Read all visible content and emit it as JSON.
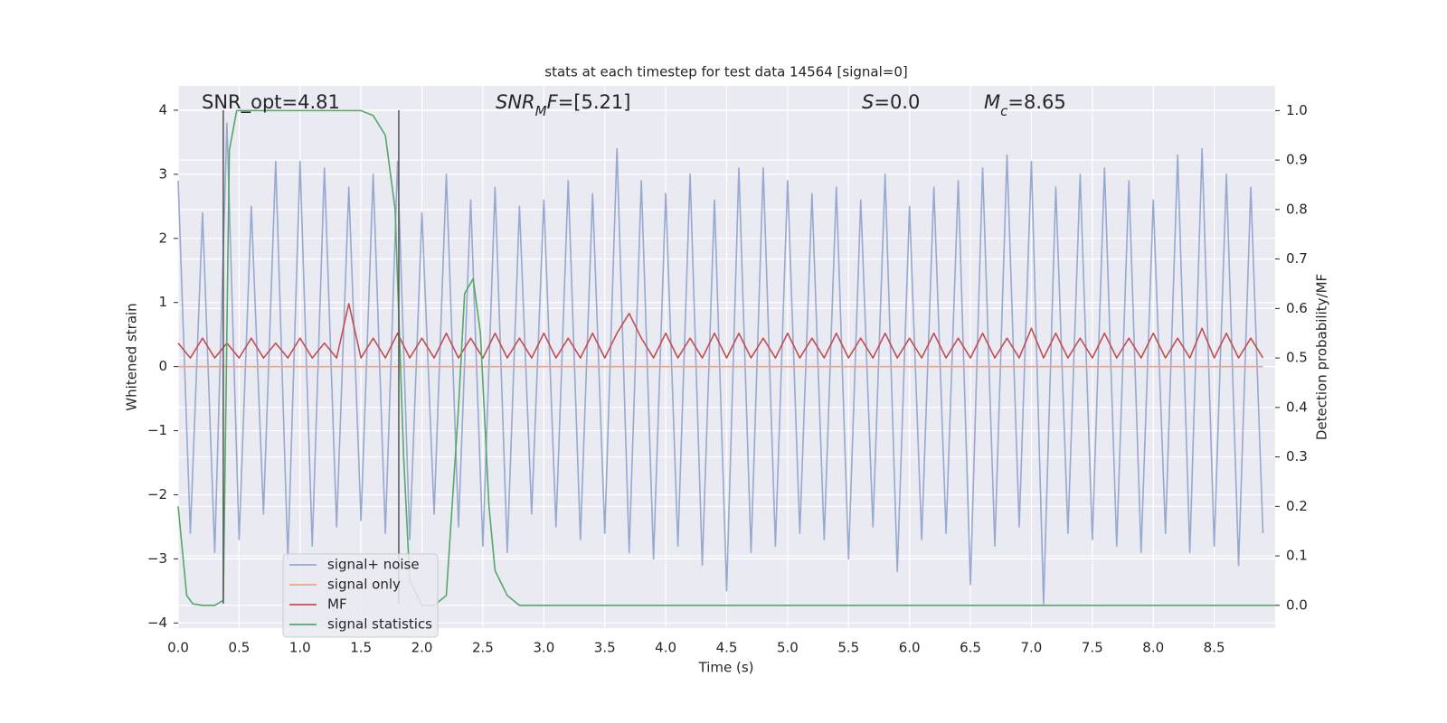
{
  "chart_data": {
    "type": "line",
    "title": "stats at each timestep for test data 14564 [signal=0]",
    "xlabel": "Time (s)",
    "ylabel": "Whitened strain",
    "y2label": "Detection probability/MF",
    "grid": true,
    "legend": "lower left",
    "xlim": [
      0,
      9.0
    ],
    "ylim": [
      -4.08,
      4.38
    ],
    "y2lim": [
      -0.046,
      1.05
    ],
    "xticks": [
      {
        "value": 0,
        "label": "0.0"
      },
      0.5,
      {
        "value": 1,
        "label": "1.0"
      },
      1.5,
      {
        "value": 2,
        "label": "2.0"
      },
      2.5,
      {
        "value": 3,
        "label": "3.0"
      },
      3.5,
      {
        "value": 4,
        "label": "4.0"
      },
      4.5,
      {
        "value": 5,
        "label": "5.0"
      },
      5.5,
      {
        "value": 6,
        "label": "6.0"
      },
      6.5,
      {
        "value": 7,
        "label": "7.0"
      },
      7.5,
      {
        "value": 8,
        "label": "8.0"
      },
      8.5
    ],
    "yticks": [
      {
        "value": -4,
        "label": "−4"
      },
      {
        "value": -3,
        "label": "−3"
      },
      {
        "value": -2,
        "label": "−2"
      },
      {
        "value": -1,
        "label": "−1"
      },
      0,
      1,
      2,
      3,
      4
    ],
    "y2ticks": [
      {
        "value": 0,
        "label": "0.0"
      },
      0.1,
      0.2,
      0.3,
      0.4,
      0.5,
      0.6,
      0.7,
      0.8,
      0.9,
      {
        "value": 1,
        "label": "1.0"
      }
    ],
    "x": [
      0.0,
      0.1,
      0.2,
      0.3,
      0.4,
      0.5,
      0.6,
      0.7,
      0.8,
      0.9,
      1.0,
      1.1,
      1.2,
      1.3,
      1.4,
      1.5,
      1.6,
      1.7,
      1.8,
      1.9,
      2.0,
      2.1,
      2.2,
      2.3,
      2.4,
      2.5,
      2.6,
      2.7,
      2.8,
      2.9,
      3.0,
      3.1,
      3.2,
      3.3,
      3.4,
      3.5,
      3.6,
      3.7,
      3.8,
      3.9,
      4.0,
      4.1,
      4.2,
      4.3,
      4.4,
      4.5,
      4.6,
      4.7,
      4.8,
      4.9,
      5.0,
      5.1,
      5.2,
      5.3,
      5.4,
      5.5,
      5.6,
      5.7,
      5.8,
      5.9,
      6.0,
      6.1,
      6.2,
      6.3,
      6.4,
      6.5,
      6.6,
      6.7,
      6.8,
      6.9,
      7.0,
      7.1,
      7.2,
      7.3,
      7.4,
      7.5,
      7.6,
      7.7,
      7.8,
      7.9,
      8.0,
      8.1,
      8.2,
      8.3,
      8.4,
      8.5,
      8.6,
      8.7,
      8.8,
      8.9
    ],
    "series": [
      {
        "name": "signal+ noise",
        "color": "#97a9cf",
        "values": [
          2.9,
          -2.6,
          2.4,
          -2.9,
          3.8,
          -2.7,
          2.5,
          -2.3,
          3.2,
          -3.0,
          3.2,
          -2.8,
          3.1,
          -2.5,
          2.8,
          -2.4,
          3.0,
          -2.6,
          3.2,
          -2.7,
          2.4,
          -2.3,
          3.0,
          -2.5,
          2.6,
          -2.8,
          2.8,
          -2.9,
          2.5,
          -2.3,
          2.6,
          -2.5,
          2.9,
          -2.7,
          2.7,
          -2.6,
          3.4,
          -2.9,
          2.9,
          -3.0,
          2.7,
          -2.8,
          3.0,
          -3.1,
          2.6,
          -3.5,
          3.1,
          -2.9,
          3.1,
          -2.8,
          2.9,
          -2.6,
          2.7,
          -2.7,
          2.8,
          -3.0,
          2.6,
          -2.5,
          3.0,
          -3.2,
          2.5,
          -2.7,
          2.8,
          -2.6,
          2.9,
          -3.4,
          3.1,
          -2.8,
          3.3,
          -2.5,
          3.2,
          -3.7,
          2.8,
          -2.6,
          3.0,
          -2.7,
          3.1,
          -2.8,
          2.9,
          -2.9,
          2.6,
          -2.6,
          3.3,
          -2.9,
          3.4,
          -2.8,
          3.0,
          -3.1,
          2.8,
          -2.6
        ]
      },
      {
        "name": "signal only",
        "color": "#e8a58b",
        "x": [
          0.0,
          8.9
        ],
        "values": [
          0,
          0
        ]
      },
      {
        "name": "MF",
        "color": "#c44e52",
        "axis": "y2",
        "values": [
          0.53,
          0.5,
          0.54,
          0.5,
          0.53,
          0.5,
          0.54,
          0.5,
          0.53,
          0.5,
          0.54,
          0.5,
          0.53,
          0.5,
          0.61,
          0.5,
          0.54,
          0.5,
          0.55,
          0.5,
          0.54,
          0.5,
          0.55,
          0.5,
          0.54,
          0.5,
          0.55,
          0.5,
          0.54,
          0.5,
          0.55,
          0.5,
          0.54,
          0.5,
          0.55,
          0.5,
          0.55,
          0.59,
          0.54,
          0.5,
          0.55,
          0.5,
          0.54,
          0.5,
          0.55,
          0.5,
          0.55,
          0.5,
          0.54,
          0.5,
          0.55,
          0.5,
          0.54,
          0.5,
          0.55,
          0.5,
          0.54,
          0.5,
          0.55,
          0.5,
          0.54,
          0.5,
          0.55,
          0.5,
          0.54,
          0.5,
          0.55,
          0.5,
          0.54,
          0.5,
          0.56,
          0.5,
          0.55,
          0.5,
          0.54,
          0.5,
          0.55,
          0.5,
          0.54,
          0.5,
          0.55,
          0.5,
          0.54,
          0.5,
          0.56,
          0.5,
          0.55,
          0.5,
          0.54,
          0.5
        ]
      },
      {
        "name": "signal statistics",
        "color": "#55a868",
        "axis": "y2",
        "x": [
          0,
          0.07,
          0.12,
          0.2,
          0.3,
          0.37,
          0.42,
          0.48,
          1.5,
          1.6,
          1.7,
          1.78,
          1.85,
          1.9,
          2.0,
          2.1,
          2.2,
          2.3,
          2.35,
          2.42,
          2.48,
          2.55,
          2.6,
          2.7,
          2.8,
          9.0
        ],
        "values": [
          0.2,
          0.02,
          0.003,
          0,
          0,
          0.01,
          0.92,
          1.0,
          1.0,
          0.99,
          0.95,
          0.8,
          0.3,
          0.05,
          0,
          0,
          0.02,
          0.4,
          0.63,
          0.66,
          0.55,
          0.2,
          0.07,
          0.02,
          0,
          0
        ]
      }
    ],
    "vlines": {
      "color": "#555555",
      "x": [
        0.37,
        1.81
      ],
      "ymin": -3.7,
      "ymax": 4.0
    },
    "annotations": [
      {
        "parts": [
          {
            "text": "SNR_opt=4.81"
          }
        ]
      },
      {
        "parts": [
          {
            "text": "SNR",
            "italic": true
          },
          {
            "text": "M",
            "italic": true,
            "sub": true
          },
          {
            "text": "F",
            "italic": true
          },
          {
            "text": "=[5.21]"
          }
        ]
      },
      {
        "parts": [
          {
            "text": "S",
            "italic": true
          },
          {
            "text": "=0.0"
          }
        ]
      },
      {
        "parts": [
          {
            "text": "M",
            "italic": true
          },
          {
            "text": "c",
            "italic": true,
            "sub": true
          },
          {
            "text": "=8.65"
          }
        ]
      }
    ]
  }
}
